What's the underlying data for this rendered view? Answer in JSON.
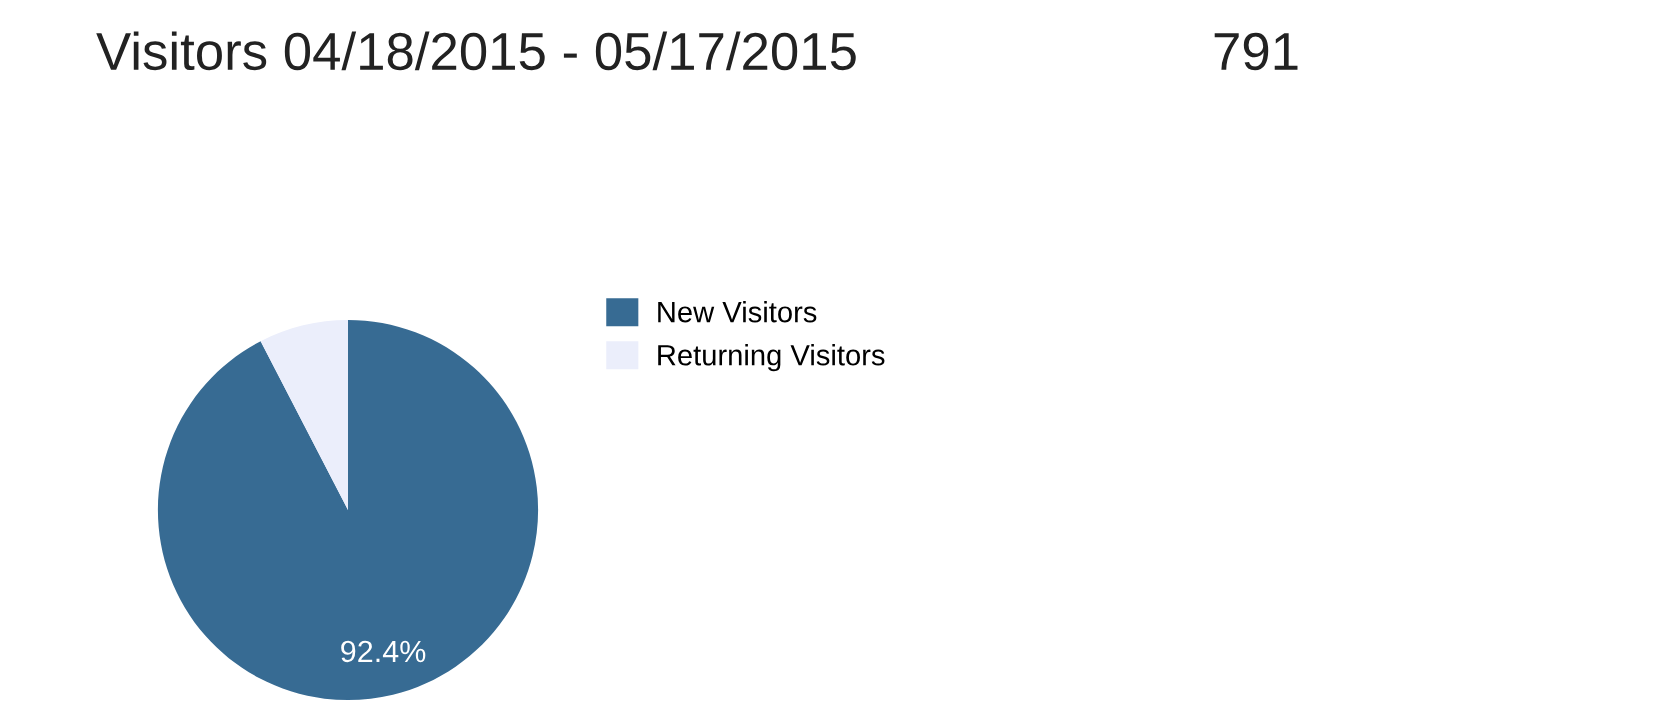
{
  "chart_data": {
    "type": "pie",
    "title": "Visitors 04/18/2015 - 05/17/2015",
    "subtitle": "791",
    "categories": [
      "New Visitors",
      "Returning Visitors"
    ],
    "values": [
      92.4,
      7.6
    ],
    "colors": [
      "#376b93",
      "#ebeefb"
    ],
    "value_labels": [
      "92.4%",
      null
    ],
    "legend": "right"
  }
}
